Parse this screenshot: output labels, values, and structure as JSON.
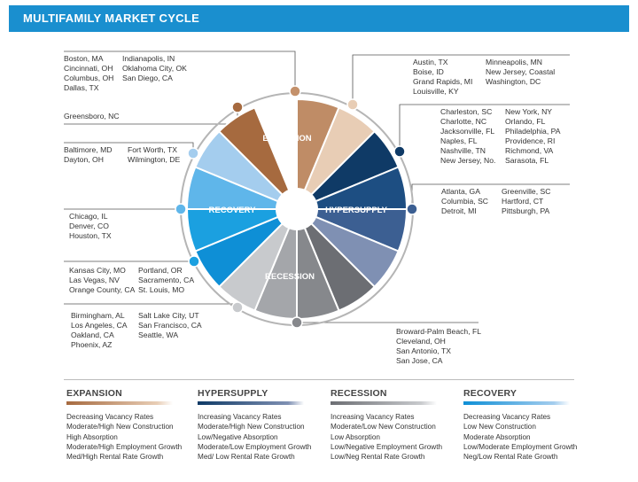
{
  "header": {
    "title": "MULTIFAMILY MARKET CYCLE"
  },
  "phases": {
    "expansion": "EXPANSION",
    "hypersupply": "HYPERSUPPLY",
    "recession": "RECESSION",
    "recovery": "RECOVERY"
  },
  "colors": {
    "expansion_dark": "#b7835b",
    "expansion_light": "#e8cdb5",
    "hypersupply_dark": "#0f3a66",
    "hypersupply_light": "#7f90b3",
    "recession_dark": "#86888c",
    "recession_light": "#c8cacd",
    "recovery_dark": "#0e8fd6",
    "recovery_light": "#a4cdee",
    "header": "#1a8fcf"
  },
  "markets": {
    "exp_top": {
      "col1": [
        "Boston, MA",
        "Cincinnati, OH",
        "Columbus, OH",
        "Dallas, TX"
      ],
      "col2": [
        "Indianapolis, IN",
        "Oklahoma City, OK",
        "San Diego, CA"
      ]
    },
    "exp_mid": {
      "col1": [
        "Greensboro, NC"
      ]
    },
    "exp_low": {
      "col1": [
        "Baltimore, MD",
        "Dayton, OH"
      ],
      "col2": [
        "Fort Worth, TX",
        "Wilmington, DE"
      ]
    },
    "rec_top": {
      "col1": [
        "Chicago, IL",
        "Denver, CO",
        "Houston, TX"
      ]
    },
    "rec_mid": {
      "col1": [
        "Kansas City, MO",
        "Las Vegas, NV",
        "Orange County, CA"
      ],
      "col2": [
        "Portland, OR",
        "Sacramento, CA",
        "St. Louis, MO"
      ]
    },
    "rec_low": {
      "col1": [
        "Birmingham, AL",
        "Los Angeles, CA",
        "Oakland, CA",
        "Phoenix, AZ"
      ],
      "col2": [
        "Salt Lake City, UT",
        "San Francisco, CA",
        "Seattle, WA"
      ]
    },
    "hyp_top": {
      "col1": [
        "Austin, TX",
        "Boise, ID",
        "Grand Rapids, MI",
        "Louisville, KY"
      ],
      "col2": [
        "Minneapolis, MN",
        "New Jersey, Coastal",
        "Washington, DC"
      ]
    },
    "hyp_mid": {
      "col1": [
        "Charleston, SC",
        "Charlotte, NC",
        "Jacksonville, FL",
        "Naples, FL",
        "Nashville, TN",
        "New Jersey, No."
      ],
      "col2": [
        "New York, NY",
        "Orlando, FL",
        "Philadelphia, PA",
        "Providence, RI",
        "Richmond, VA",
        "Sarasota, FL"
      ]
    },
    "hyp_low": {
      "col1": [
        "Atlanta, GA",
        "Columbia, SC",
        "Detroit, MI"
      ],
      "col2": [
        "Greenville, SC",
        "Hartford, CT",
        "Pittsburgh, PA"
      ]
    },
    "recess": {
      "col1": [
        "Broward-Palm Beach, FL",
        "Cleveland, OH",
        "San Antonio, TX",
        "San Jose, CA"
      ]
    }
  },
  "legend": [
    {
      "title": "EXPANSION",
      "items": [
        "Decreasing Vacancy Rates",
        "Moderate/High New Construction",
        "High Absorption",
        "Moderate/High Employment Growth",
        "Med/High Rental Rate Growth"
      ]
    },
    {
      "title": "HYPERSUPPLY",
      "items": [
        "Increasing Vacancy Rates",
        "Moderate/High New Construction",
        "Low/Negative Absorption",
        "Moderate/Low Employment Growth",
        "Med/ Low Rental Rate Growth"
      ]
    },
    {
      "title": "RECESSION",
      "items": [
        "Increasing Vacancy Rates",
        "Moderate/Low New Construction",
        "Low Absorption",
        "Low/Negative Employment Growth",
        "Low/Neg Rental Rate Growth"
      ]
    },
    {
      "title": "RECOVERY",
      "items": [
        "Decreasing Vacancy Rates",
        "Low New Construction",
        "Moderate Absorption",
        "Low/Moderate Employment Growth",
        "Neg/Low Rental Rate Growth"
      ]
    }
  ]
}
